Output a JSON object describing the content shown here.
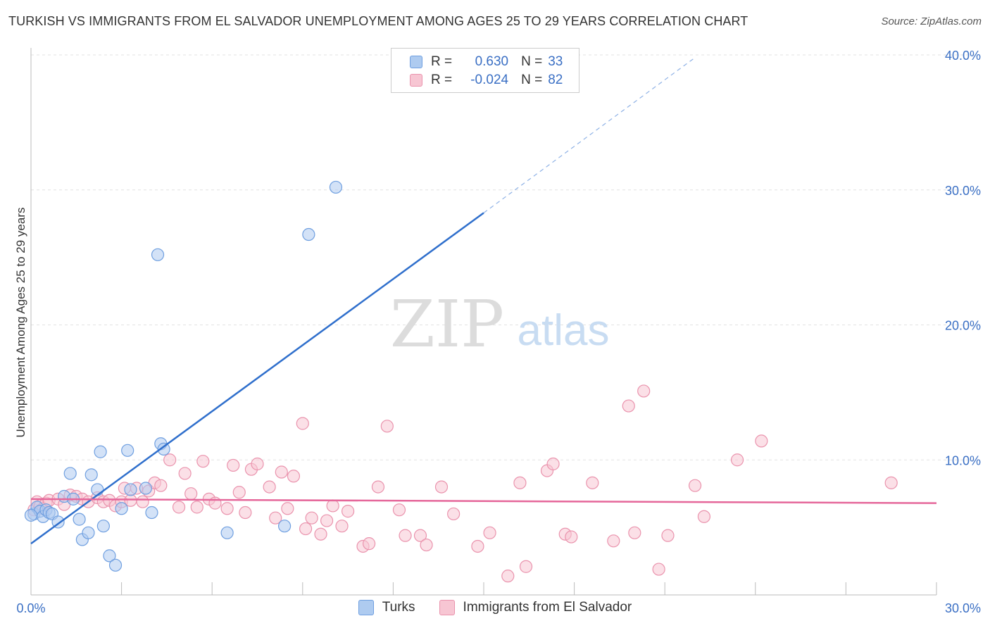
{
  "header": {
    "title": "TURKISH VS IMMIGRANTS FROM EL SALVADOR UNEMPLOYMENT AMONG AGES 25 TO 29 YEARS CORRELATION CHART",
    "source": "Source: ZipAtlas.com"
  },
  "watermark": {
    "zip": "ZIP",
    "atlas": "atlas"
  },
  "legend": {
    "r_label": "R =",
    "n_label": "N =",
    "series": [
      {
        "r": "0.630",
        "n": "33",
        "swatch": "#aecbf0",
        "border": "#6f9fe0"
      },
      {
        "r": "-0.024",
        "n": "82",
        "swatch": "#f7c6d3",
        "border": "#ea93ad"
      }
    ]
  },
  "bottom_legend": [
    "Turks",
    "Immigrants from El Salvador"
  ],
  "colors": {
    "turks": "#2f6fcc",
    "elsal": "#e5679a",
    "turks_fill": "#aecbf0",
    "elsal_fill": "#f7c6d3",
    "axis_label": "#3a6fc4"
  },
  "chart_data": {
    "type": "scatter",
    "title": "TURKISH VS IMMIGRANTS FROM EL SALVADOR UNEMPLOYMENT AMONG AGES 25 TO 29 YEARS CORRELATION CHART",
    "xlabel": "",
    "ylabel": "Unemployment Among Ages 25 to 29 years",
    "xlim": [
      0,
      30
    ],
    "ylim": [
      0,
      40
    ],
    "x_tick_labels": [
      "0.0%",
      "30.0%"
    ],
    "y_ticks": [
      10,
      20,
      30,
      40
    ],
    "y_tick_labels": [
      "10.0%",
      "20.0%",
      "30.0%",
      "40.0%"
    ],
    "grid": true,
    "series": [
      {
        "name": "Turks",
        "points": [
          [
            0.1,
            6.0
          ],
          [
            0.2,
            6.5
          ],
          [
            0.3,
            6.2
          ],
          [
            0.4,
            5.8
          ],
          [
            0.5,
            6.3
          ],
          [
            0.6,
            6.1
          ],
          [
            0.7,
            6.0
          ],
          [
            0.9,
            5.4
          ],
          [
            1.1,
            7.3
          ],
          [
            1.3,
            9.0
          ],
          [
            1.4,
            7.1
          ],
          [
            1.6,
            5.6
          ],
          [
            1.7,
            4.1
          ],
          [
            1.9,
            4.6
          ],
          [
            2.0,
            8.9
          ],
          [
            2.2,
            7.8
          ],
          [
            2.3,
            10.6
          ],
          [
            2.4,
            5.1
          ],
          [
            2.6,
            2.9
          ],
          [
            2.8,
            2.2
          ],
          [
            3.0,
            6.4
          ],
          [
            3.2,
            10.7
          ],
          [
            3.3,
            7.8
          ],
          [
            3.8,
            7.9
          ],
          [
            4.0,
            6.1
          ],
          [
            4.2,
            25.2
          ],
          [
            4.3,
            11.2
          ],
          [
            4.4,
            10.8
          ],
          [
            6.5,
            4.6
          ],
          [
            8.4,
            5.1
          ],
          [
            9.2,
            26.7
          ],
          [
            10.1,
            30.2
          ],
          [
            0.0,
            5.9
          ]
        ],
        "trend": {
          "x0": 0,
          "y0": 3.8,
          "x1": 15.0,
          "y1": 28.3,
          "dash_to_x": 22.0,
          "dash_to_y": 39.8
        }
      },
      {
        "name": "Immigrants from El Salvador",
        "points": [
          [
            0.1,
            6.3
          ],
          [
            0.2,
            6.9
          ],
          [
            0.3,
            6.6
          ],
          [
            0.4,
            6.4
          ],
          [
            0.5,
            6.8
          ],
          [
            0.6,
            7.0
          ],
          [
            0.9,
            7.1
          ],
          [
            1.1,
            6.7
          ],
          [
            1.3,
            7.4
          ],
          [
            1.5,
            7.3
          ],
          [
            1.7,
            7.1
          ],
          [
            1.9,
            6.9
          ],
          [
            2.2,
            7.2
          ],
          [
            2.4,
            6.9
          ],
          [
            2.6,
            7.0
          ],
          [
            2.8,
            6.6
          ],
          [
            3.0,
            6.9
          ],
          [
            3.1,
            7.9
          ],
          [
            3.3,
            7.0
          ],
          [
            3.5,
            7.9
          ],
          [
            3.7,
            6.9
          ],
          [
            3.9,
            7.7
          ],
          [
            4.1,
            8.3
          ],
          [
            4.3,
            8.1
          ],
          [
            4.6,
            10.0
          ],
          [
            4.9,
            6.5
          ],
          [
            5.1,
            9.0
          ],
          [
            5.3,
            7.5
          ],
          [
            5.5,
            6.5
          ],
          [
            5.7,
            9.9
          ],
          [
            5.9,
            7.1
          ],
          [
            6.1,
            6.8
          ],
          [
            6.5,
            6.4
          ],
          [
            6.7,
            9.6
          ],
          [
            6.9,
            7.6
          ],
          [
            7.1,
            6.1
          ],
          [
            7.3,
            9.3
          ],
          [
            7.5,
            9.7
          ],
          [
            7.9,
            8.0
          ],
          [
            8.1,
            5.7
          ],
          [
            8.3,
            9.1
          ],
          [
            8.5,
            6.4
          ],
          [
            8.7,
            8.8
          ],
          [
            9.0,
            12.7
          ],
          [
            9.1,
            4.9
          ],
          [
            9.3,
            5.7
          ],
          [
            9.6,
            4.5
          ],
          [
            9.8,
            5.5
          ],
          [
            10.0,
            6.6
          ],
          [
            10.3,
            5.1
          ],
          [
            10.5,
            6.2
          ],
          [
            11.0,
            3.6
          ],
          [
            11.2,
            3.8
          ],
          [
            11.5,
            8.0
          ],
          [
            11.8,
            12.5
          ],
          [
            12.2,
            6.3
          ],
          [
            12.4,
            4.4
          ],
          [
            12.9,
            4.4
          ],
          [
            13.1,
            3.7
          ],
          [
            13.6,
            8.0
          ],
          [
            14.0,
            6.0
          ],
          [
            14.8,
            3.6
          ],
          [
            15.2,
            4.6
          ],
          [
            15.8,
            1.4
          ],
          [
            16.2,
            8.3
          ],
          [
            16.4,
            2.1
          ],
          [
            17.1,
            9.2
          ],
          [
            17.3,
            9.7
          ],
          [
            17.7,
            4.5
          ],
          [
            17.9,
            4.3
          ],
          [
            18.6,
            8.3
          ],
          [
            19.3,
            4.0
          ],
          [
            19.8,
            14.0
          ],
          [
            20.0,
            4.6
          ],
          [
            20.3,
            15.1
          ],
          [
            20.8,
            1.9
          ],
          [
            21.1,
            4.4
          ],
          [
            22.0,
            8.1
          ],
          [
            22.3,
            5.8
          ],
          [
            23.4,
            10.0
          ],
          [
            24.2,
            11.4
          ],
          [
            28.5,
            8.3
          ]
        ],
        "trend": {
          "x0": 0,
          "y0": 7.1,
          "x1": 30.0,
          "y1": 6.8
        }
      }
    ]
  }
}
